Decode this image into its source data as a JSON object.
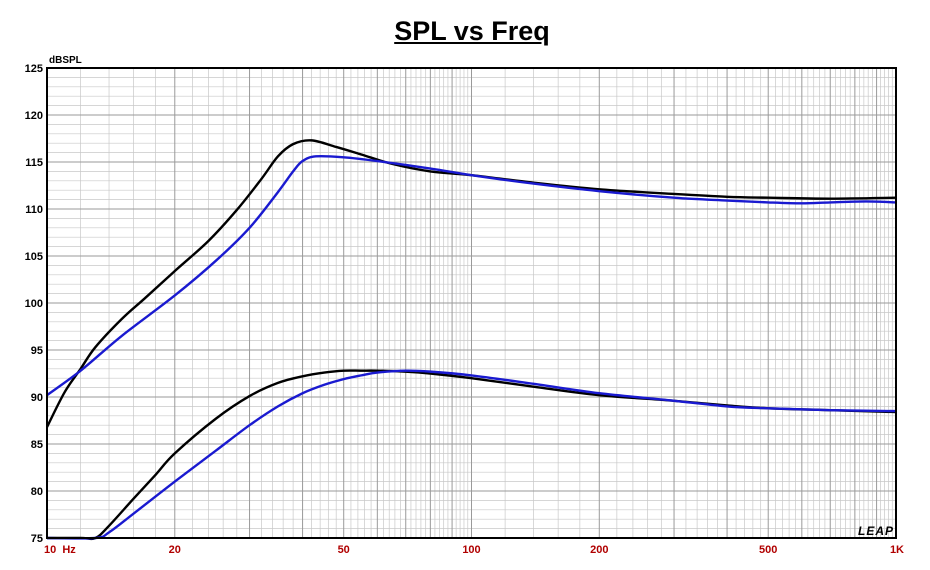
{
  "chart_data": {
    "type": "line",
    "title": "SPL vs Freq",
    "ylabel": "dBSPL",
    "xlabel": "",
    "xscale": "log",
    "xlim": [
      10,
      1000
    ],
    "ylim": [
      75,
      125
    ],
    "grid": true,
    "yticks": [
      125,
      120,
      115,
      110,
      105,
      100,
      95,
      90,
      85,
      80,
      75
    ],
    "xticks": [
      {
        "value": 10,
        "label": "10  Hz"
      },
      {
        "value": 20,
        "label": "20"
      },
      {
        "value": 50,
        "label": "50"
      },
      {
        "value": 100,
        "label": "100"
      },
      {
        "value": 200,
        "label": "200"
      },
      {
        "value": 500,
        "label": "500"
      },
      {
        "value": 1000,
        "label": "1K"
      }
    ],
    "watermark": "LEAP",
    "colors": {
      "black": "#000000",
      "blue": "#1a1ad0",
      "grid": "#c8c8c8",
      "tick": "#b00000"
    },
    "series": [
      {
        "color": "black",
        "x": [
          10,
          11,
          12,
          13,
          15,
          17,
          20,
          24,
          28,
          32,
          35,
          38,
          42,
          48,
          55,
          65,
          80,
          100,
          140,
          200,
          300,
          400,
          500,
          700,
          1000
        ],
        "y": [
          86.8,
          90.5,
          93.0,
          95.3,
          98.3,
          100.5,
          103.4,
          106.6,
          109.9,
          113.2,
          115.6,
          116.9,
          117.3,
          116.6,
          115.8,
          114.8,
          114.0,
          113.6,
          112.8,
          112.1,
          111.6,
          111.3,
          111.2,
          111.1,
          111.2
        ]
      },
      {
        "color": "blue",
        "x": [
          10,
          12,
          15,
          20,
          25,
          30,
          35,
          38,
          40,
          43,
          50,
          60,
          80,
          100,
          140,
          200,
          300,
          400,
          500,
          600,
          700,
          850,
          1000
        ],
        "y": [
          90.2,
          92.8,
          96.5,
          100.8,
          104.5,
          108.0,
          111.8,
          114.0,
          115.1,
          115.6,
          115.5,
          115.1,
          114.3,
          113.6,
          112.7,
          111.9,
          111.2,
          110.9,
          110.7,
          110.6,
          110.7,
          110.8,
          110.7
        ]
      },
      {
        "color": "black",
        "x": [
          10,
          12,
          13,
          14,
          16,
          18,
          20,
          25,
          30,
          35,
          40,
          45,
          50,
          55,
          60,
          70,
          80,
          100,
          140,
          200,
          300,
          400,
          500,
          700,
          1000
        ],
        "y": [
          75,
          75,
          75,
          76.3,
          79.2,
          81.7,
          84.0,
          87.7,
          90.1,
          91.5,
          92.2,
          92.6,
          92.8,
          92.8,
          92.8,
          92.7,
          92.5,
          92.0,
          91.1,
          90.2,
          89.6,
          89.1,
          88.8,
          88.6,
          88.4
        ]
      },
      {
        "color": "blue",
        "x": [
          10,
          13,
          14,
          16,
          20,
          25,
          30,
          35,
          40,
          45,
          50,
          55,
          60,
          70,
          80,
          100,
          140,
          200,
          300,
          400,
          500,
          700,
          1000
        ],
        "y": [
          75,
          75,
          75.6,
          77.6,
          81.0,
          84.3,
          87.0,
          89.0,
          90.4,
          91.3,
          91.9,
          92.3,
          92.6,
          92.8,
          92.7,
          92.3,
          91.4,
          90.4,
          89.6,
          89.0,
          88.8,
          88.6,
          88.5
        ]
      }
    ]
  }
}
